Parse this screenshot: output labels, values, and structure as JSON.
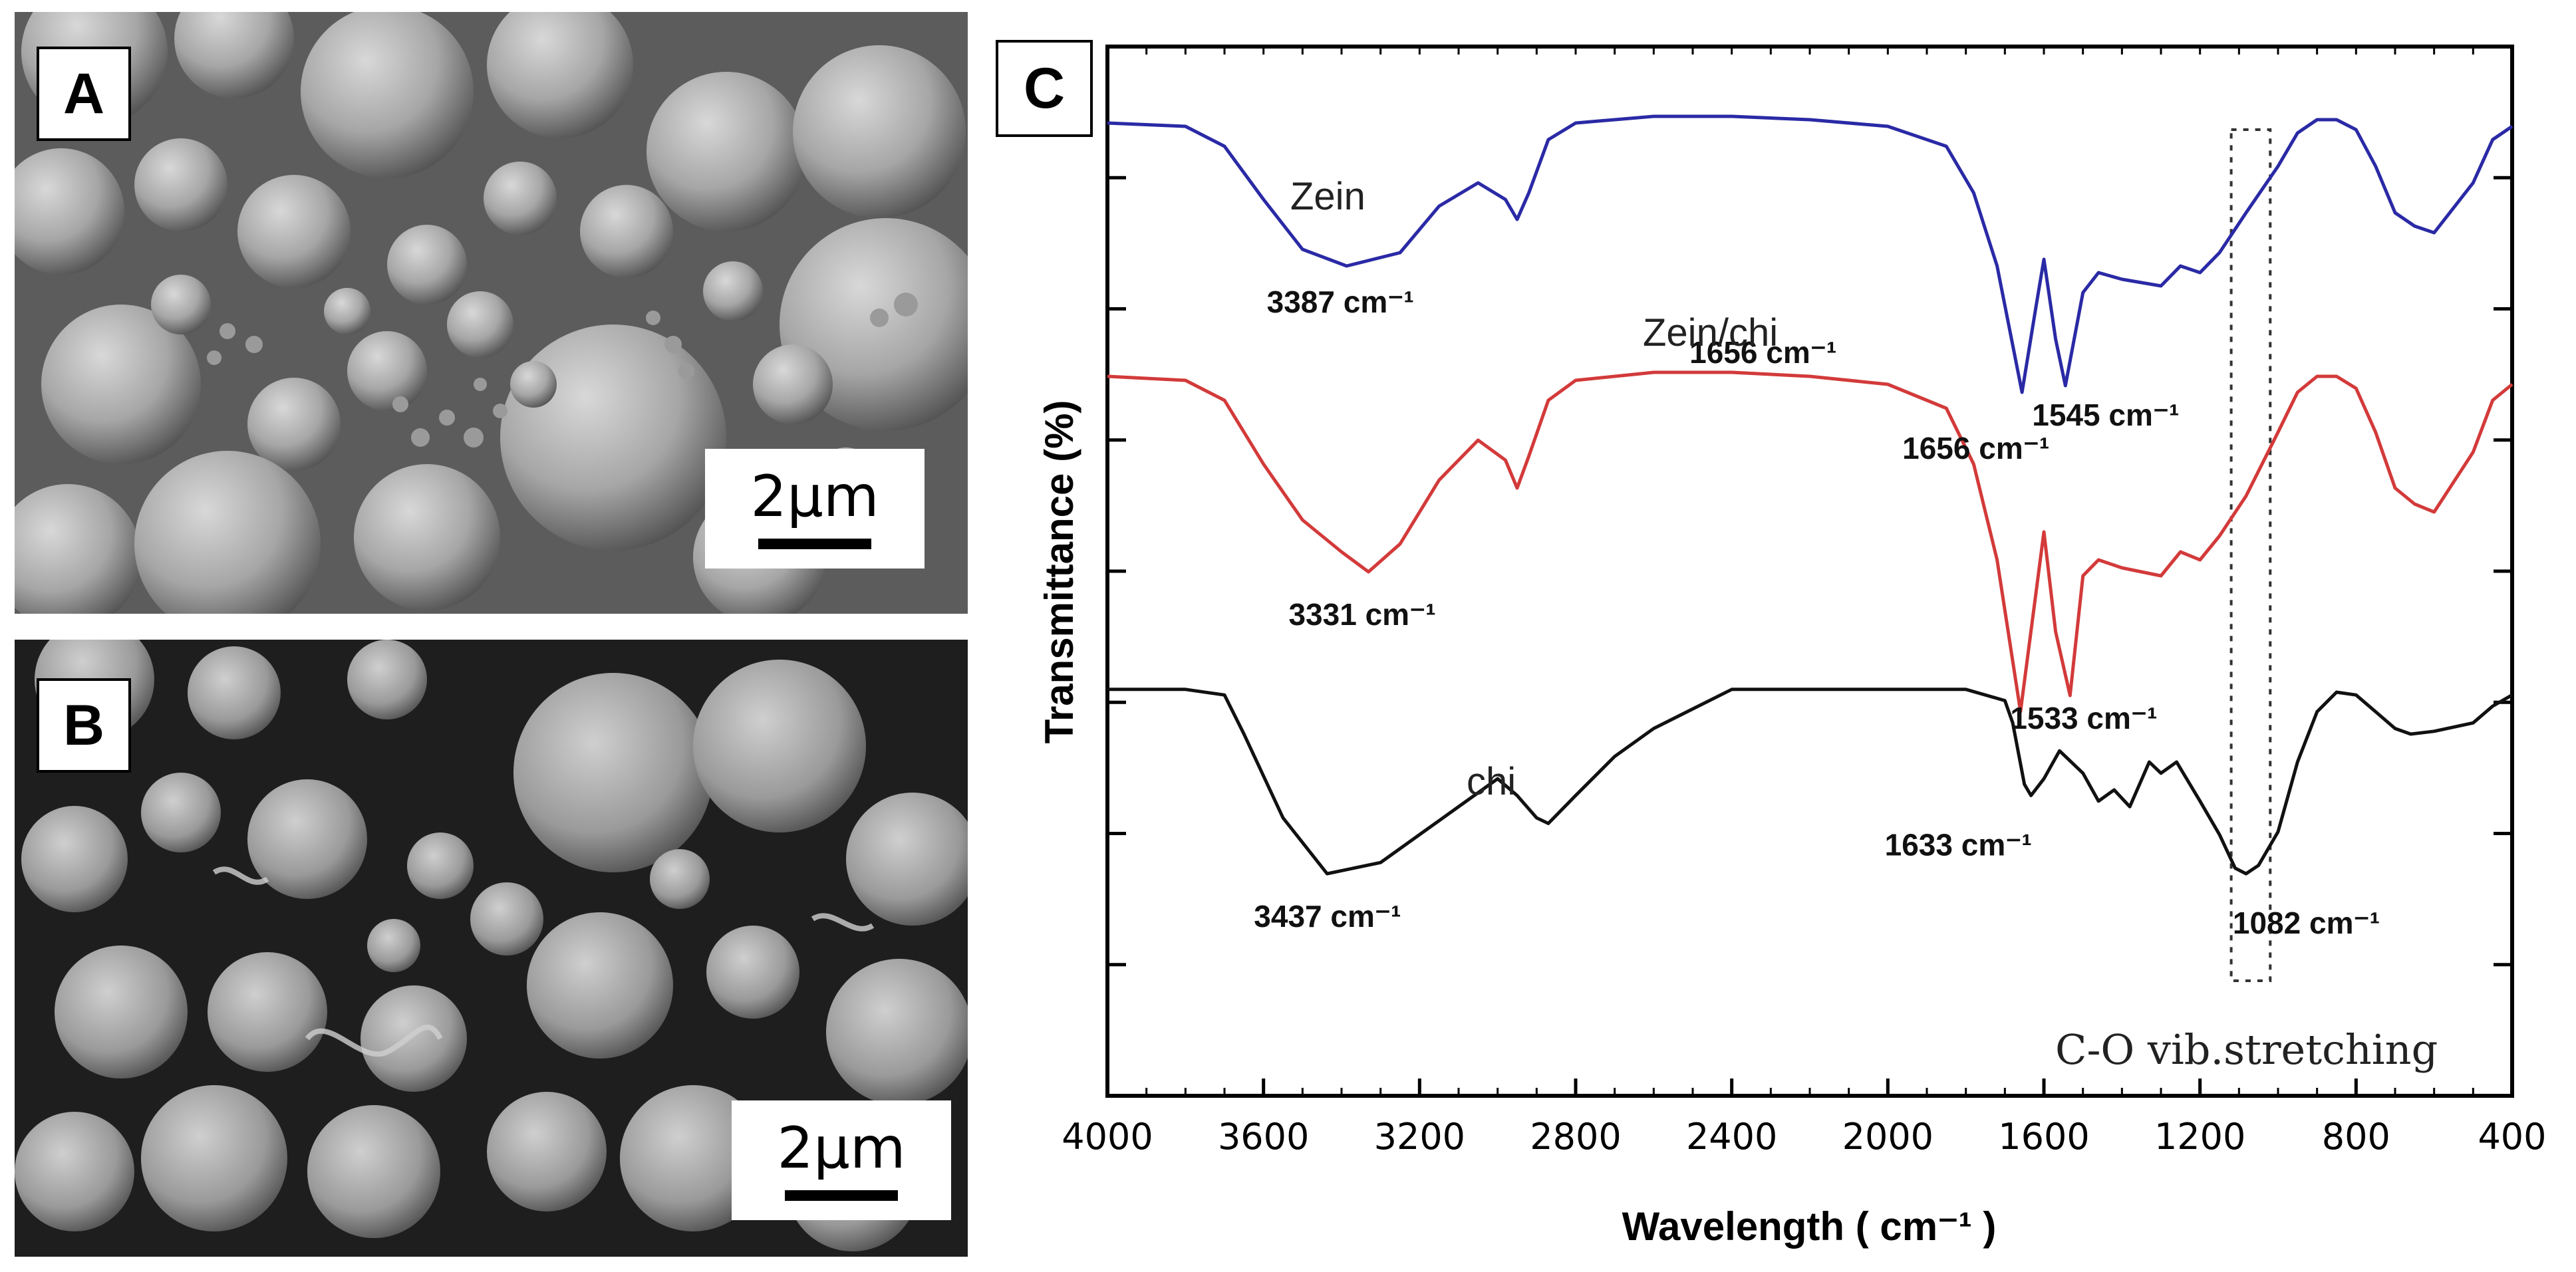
{
  "panels": {
    "A": {
      "letter": "A",
      "scale": "2µm"
    },
    "B": {
      "letter": "B",
      "scale": "2µm"
    },
    "C": {
      "letter": "C"
    }
  },
  "chart_data": {
    "type": "line",
    "title": "",
    "xlabel": "Wavelength ( cm⁻¹ )",
    "ylabel": "Transmittance (%)",
    "xlim": [
      4000,
      400
    ],
    "x_ticks": [
      4000,
      3600,
      3200,
      2800,
      2400,
      2000,
      1600,
      1200,
      800,
      400
    ],
    "y_ticks_labeled": false,
    "grid": false,
    "note": "C-O vib.stretching",
    "highlight_band": [
      1120,
      1020
    ],
    "series": [
      {
        "name": "Zein",
        "color": "#2a2aa6",
        "x": [
          4000,
          3800,
          3700,
          3600,
          3500,
          3387,
          3250,
          3150,
          3050,
          2980,
          2950,
          2920,
          2870,
          2800,
          2600,
          2400,
          2200,
          2000,
          1850,
          1780,
          1720,
          1656,
          1620,
          1600,
          1570,
          1545,
          1500,
          1460,
          1400,
          1300,
          1250,
          1200,
          1150,
          1082,
          1000,
          950,
          900,
          850,
          800,
          750,
          700,
          650,
          600,
          500,
          450,
          400
        ],
        "y": [
          93,
          92,
          86,
          70,
          55,
          50,
          54,
          68,
          75,
          70,
          64,
          72,
          88,
          93,
          95,
          95,
          94,
          92,
          86,
          72,
          50,
          12,
          38,
          52,
          28,
          14,
          42,
          48,
          46,
          44,
          50,
          48,
          54,
          66,
          80,
          90,
          94,
          94,
          91,
          80,
          66,
          62,
          60,
          75,
          88,
          92
        ]
      },
      {
        "name": "Zein/chi",
        "color": "#d33a3a",
        "x": [
          4000,
          3800,
          3700,
          3600,
          3500,
          3400,
          3331,
          3250,
          3150,
          3050,
          2980,
          2950,
          2920,
          2870,
          2800,
          2600,
          2400,
          2200,
          2000,
          1850,
          1780,
          1720,
          1660,
          1620,
          1600,
          1570,
          1533,
          1500,
          1460,
          1400,
          1300,
          1250,
          1200,
          1150,
          1082,
          1000,
          950,
          900,
          850,
          800,
          750,
          700,
          650,
          600,
          500,
          450,
          400
        ],
        "y": [
          94,
          93,
          88,
          72,
          58,
          50,
          45,
          52,
          68,
          78,
          73,
          66,
          74,
          88,
          93,
          95,
          95,
          94,
          92,
          86,
          72,
          48,
          10,
          40,
          55,
          30,
          14,
          44,
          48,
          46,
          44,
          50,
          48,
          54,
          64,
          80,
          90,
          94,
          94,
          91,
          80,
          66,
          62,
          60,
          75,
          88,
          92
        ]
      },
      {
        "name": "chi",
        "color": "#111111",
        "x": [
          4000,
          3800,
          3700,
          3650,
          3550,
          3437,
          3300,
          3200,
          3100,
          3000,
          2950,
          2900,
          2870,
          2800,
          2700,
          2600,
          2400,
          2200,
          2000,
          1800,
          1700,
          1680,
          1650,
          1633,
          1600,
          1560,
          1500,
          1460,
          1420,
          1380,
          1330,
          1300,
          1260,
          1200,
          1150,
          1110,
          1082,
          1050,
          1000,
          950,
          900,
          850,
          800,
          750,
          700,
          660,
          600,
          500,
          450,
          400
        ],
        "y": [
          96,
          96,
          94,
          80,
          50,
          30,
          34,
          44,
          54,
          64,
          58,
          50,
          48,
          58,
          72,
          82,
          96,
          96,
          96,
          96,
          92,
          84,
          62,
          58,
          64,
          74,
          66,
          56,
          60,
          54,
          70,
          66,
          70,
          56,
          44,
          32,
          30,
          33,
          45,
          70,
          88,
          95,
          94,
          88,
          82,
          80,
          81,
          84,
          90,
          94
        ]
      }
    ],
    "annotations": [
      {
        "text": "3387 cm⁻¹",
        "series": "Zein",
        "x": 3387
      },
      {
        "text": "1656 cm⁻¹",
        "series": "Zein",
        "x": 1656
      },
      {
        "text": "1545 cm⁻¹",
        "series": "Zein",
        "x": 1545
      },
      {
        "text": "3331 cm⁻¹",
        "series": "Zein/chi",
        "x": 3331
      },
      {
        "text": "1656 cm⁻¹",
        "series": "Zein/chi",
        "x": 1656
      },
      {
        "text": "1533 cm⁻¹",
        "series": "Zein/chi",
        "x": 1533
      },
      {
        "text": "3437 cm⁻¹",
        "series": "chi",
        "x": 3437
      },
      {
        "text": "1633 cm⁻¹",
        "series": "chi",
        "x": 1633
      },
      {
        "text": "1082 cm⁻¹",
        "series": "chi",
        "x": 1082
      }
    ]
  }
}
